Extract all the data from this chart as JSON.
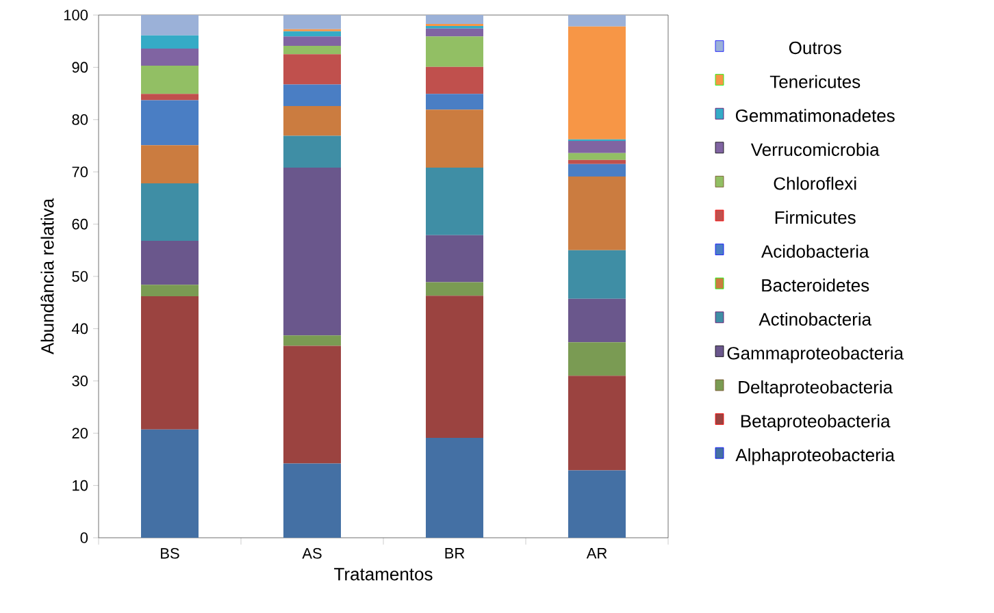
{
  "chart_data": {
    "type": "bar",
    "stacked": true,
    "xlabel": "Tratamentos",
    "ylabel": "Abundância relativa",
    "categories": [
      "BS",
      "AS",
      "BR",
      "AR"
    ],
    "ylim": [
      0,
      100
    ],
    "yticks": [
      0,
      10,
      20,
      30,
      40,
      50,
      60,
      70,
      80,
      90,
      100
    ],
    "legend": "right",
    "grid": false,
    "series": [
      {
        "name": "Alphaproteobacteria",
        "color": "#4470a4",
        "values": [
          20.7,
          14.2,
          19.1,
          12.9
        ]
      },
      {
        "name": "Betaproteobacteria",
        "color": "#9b4340",
        "values": [
          25.5,
          22.5,
          27.2,
          18.1
        ]
      },
      {
        "name": "Deltaproteobacteria",
        "color": "#7a9b53",
        "values": [
          2.2,
          2.0,
          2.6,
          6.4
        ]
      },
      {
        "name": "Gammaproteobacteria",
        "color": "#6a578c",
        "values": [
          8.4,
          32.1,
          9.0,
          8.3
        ]
      },
      {
        "name": "Actinobacteria",
        "color": "#3f8ea5",
        "values": [
          11.0,
          6.1,
          12.9,
          9.3
        ]
      },
      {
        "name": "Bacteroidetes",
        "color": "#cb7c40",
        "values": [
          7.3,
          5.7,
          11.1,
          14.1
        ]
      },
      {
        "name": "Acidobacteria",
        "color": "#4a7ec4",
        "values": [
          8.6,
          4.1,
          3.0,
          2.4
        ]
      },
      {
        "name": "Firmicutes",
        "color": "#c0504d",
        "values": [
          1.2,
          5.8,
          5.2,
          0.8
        ]
      },
      {
        "name": "Chloroflexi",
        "color": "#92bf64",
        "values": [
          5.4,
          1.6,
          5.8,
          1.3
        ]
      },
      {
        "name": "Verrucomicrobia",
        "color": "#8064a2",
        "values": [
          3.3,
          1.8,
          1.5,
          2.3
        ]
      },
      {
        "name": "Gemmatimonadetes",
        "color": "#35abc6",
        "values": [
          2.5,
          1.0,
          0.5,
          0.3
        ]
      },
      {
        "name": "Tenericutes",
        "color": "#f79646",
        "values": [
          0,
          0.4,
          0.4,
          21.6
        ]
      },
      {
        "name": "Outros",
        "color": "#9bb1d8",
        "values": [
          3.9,
          2.7,
          1.7,
          2.2
        ]
      }
    ]
  }
}
